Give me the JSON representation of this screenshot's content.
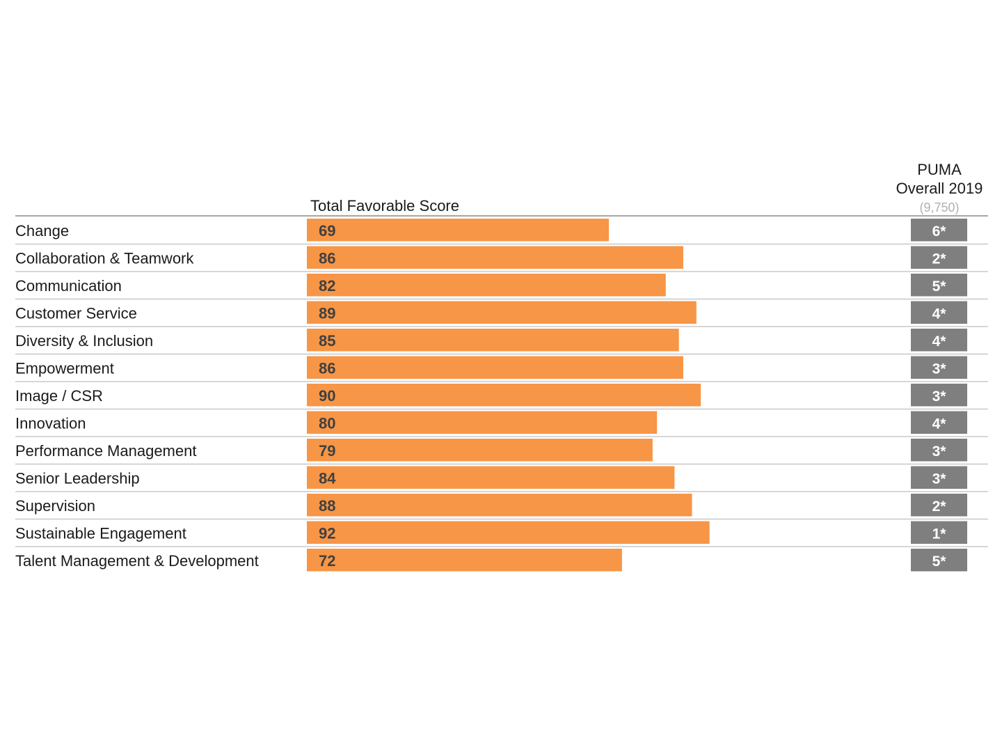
{
  "colors": {
    "bar": "#f79646",
    "badge": "#7f7f7f",
    "separator": "#c8c8c8",
    "header_rule": "#a6a6a6"
  },
  "header": {
    "score_column": "Total Favorable Score",
    "benchmark_line1": "PUMA",
    "benchmark_line2": "Overall 2019",
    "benchmark_n": "(9,750)"
  },
  "chart_data": {
    "type": "bar",
    "orientation": "horizontal",
    "xlim": [
      0,
      100
    ],
    "grid": false,
    "categories": [
      "Change",
      "Collaboration & Teamwork",
      "Communication",
      "Customer Service",
      "Diversity & Inclusion",
      "Empowerment",
      "Image / CSR",
      "Innovation",
      "Performance Management",
      "Senior Leadership",
      "Supervision",
      "Sustainable Engagement",
      "Talent Management & Development"
    ],
    "values": [
      69,
      86,
      82,
      89,
      85,
      86,
      90,
      80,
      79,
      84,
      88,
      92,
      72
    ],
    "comparison": [
      "6*",
      "2*",
      "5*",
      "4*",
      "4*",
      "3*",
      "3*",
      "4*",
      "3*",
      "3*",
      "2*",
      "1*",
      "5*"
    ]
  }
}
